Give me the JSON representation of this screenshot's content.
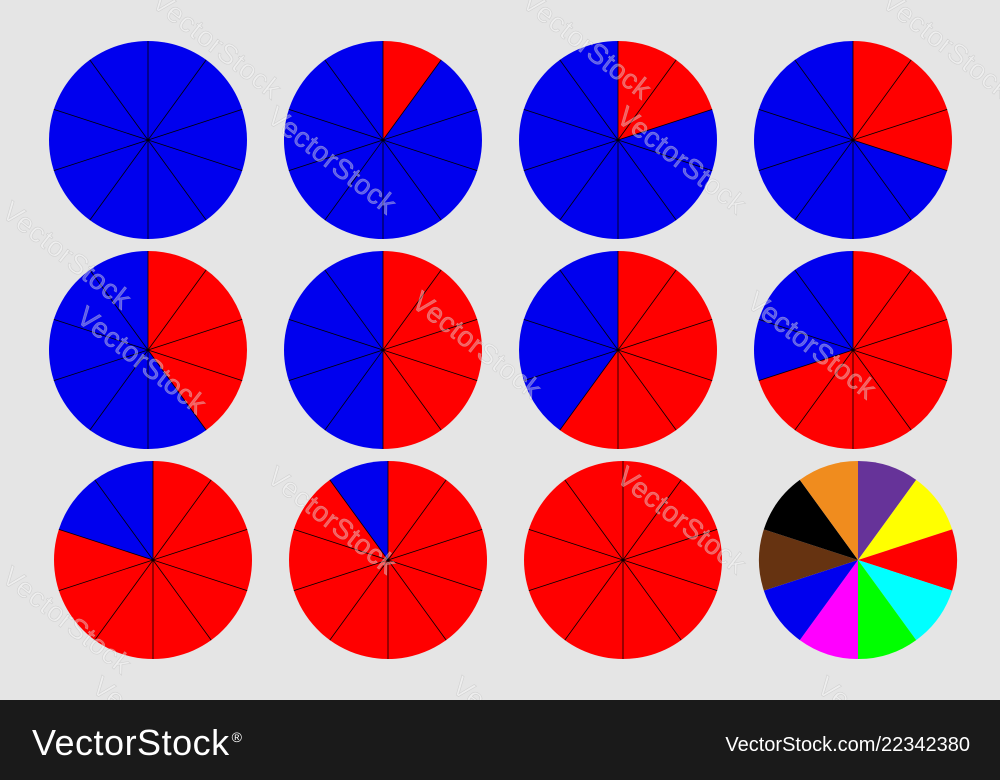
{
  "watermark": {
    "text": "VectorStock"
  },
  "footer": {
    "brand": "VectorStock",
    "registered": "®",
    "url": "VectorStock.com/22342380"
  },
  "colors": {
    "filled": "#ff0000",
    "empty": "#0000ee",
    "divider": "#000000",
    "background": "#e5e5e5",
    "footer_bg": "#1a1a1a"
  },
  "pies": {
    "slices_per_pie": 10,
    "items": [
      {
        "filled_slices": 0
      },
      {
        "filled_slices": 1
      },
      {
        "filled_slices": 2
      },
      {
        "filled_slices": 3
      },
      {
        "filled_slices": 4
      },
      {
        "filled_slices": 5
      },
      {
        "filled_slices": 6
      },
      {
        "filled_slices": 7
      },
      {
        "filled_slices": 8
      },
      {
        "filled_slices": 9
      },
      {
        "filled_slices": 10
      }
    ],
    "multicolor": {
      "slice_colors": [
        "#663399",
        "#ffff00",
        "#ff0000",
        "#00ffff",
        "#00ff00",
        "#ff00ff",
        "#0000ee",
        "#663311",
        "#000000",
        "#f08c1e"
      ]
    }
  }
}
